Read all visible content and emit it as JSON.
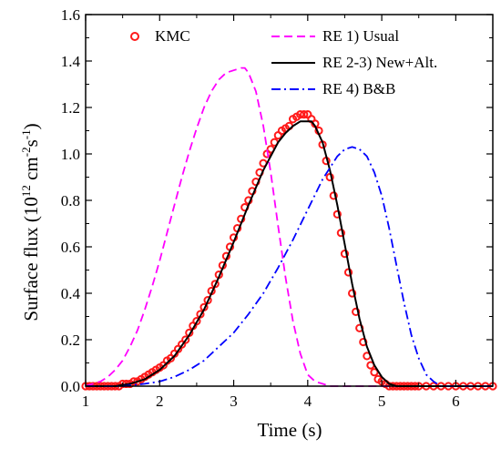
{
  "chart_data": {
    "type": "line",
    "xlabel": "Time (s)",
    "ylabel": {
      "base": "Surface flux (10",
      "sup1": "12",
      "mid1": " cm",
      "sup2": "-2",
      "mid2": "s",
      "sup3": "-1",
      "end": ")"
    },
    "xlim": [
      1,
      6.5
    ],
    "ylim": [
      0,
      1.6
    ],
    "xticks": [
      "1",
      "2",
      "3",
      "4",
      "5",
      "6"
    ],
    "yticks": [
      "0.0",
      "0.2",
      "0.4",
      "0.6",
      "0.8",
      "1.0",
      "1.2",
      "1.4",
      "1.6"
    ],
    "grid": false,
    "legend_position": "top",
    "series": [
      {
        "name": "KMC",
        "style": "markers",
        "marker": "open-circle",
        "color": "#ff1a1a",
        "x": [
          1.0,
          1.05,
          1.1,
          1.15,
          1.2,
          1.25,
          1.3,
          1.35,
          1.4,
          1.45,
          1.5,
          1.55,
          1.6,
          1.65,
          1.7,
          1.75,
          1.8,
          1.85,
          1.9,
          1.95,
          2.0,
          2.05,
          2.1,
          2.15,
          2.2,
          2.25,
          2.3,
          2.35,
          2.4,
          2.45,
          2.5,
          2.55,
          2.6,
          2.65,
          2.7,
          2.75,
          2.8,
          2.85,
          2.9,
          2.95,
          3.0,
          3.05,
          3.1,
          3.15,
          3.2,
          3.25,
          3.3,
          3.35,
          3.4,
          3.45,
          3.5,
          3.55,
          3.6,
          3.65,
          3.7,
          3.75,
          3.8,
          3.85,
          3.9,
          3.95,
          4.0,
          4.05,
          4.1,
          4.15,
          4.2,
          4.25,
          4.3,
          4.35,
          4.4,
          4.45,
          4.5,
          4.55,
          4.6,
          4.65,
          4.7,
          4.75,
          4.8,
          4.85,
          4.9,
          4.95,
          5.0,
          5.05,
          5.1,
          5.15,
          5.2,
          5.25,
          5.3,
          5.35,
          5.4,
          5.45,
          5.5,
          5.6,
          5.7,
          5.8,
          5.9,
          6.0,
          6.1,
          6.2,
          6.3,
          6.4,
          6.5
        ],
        "y": [
          0.0,
          0.0,
          0.0,
          0.0,
          0.0,
          0.0,
          0.0,
          0.0,
          0.0,
          0.0,
          0.01,
          0.01,
          0.01,
          0.02,
          0.02,
          0.03,
          0.04,
          0.05,
          0.06,
          0.07,
          0.08,
          0.09,
          0.11,
          0.12,
          0.14,
          0.16,
          0.18,
          0.2,
          0.23,
          0.26,
          0.28,
          0.31,
          0.34,
          0.37,
          0.41,
          0.44,
          0.48,
          0.52,
          0.56,
          0.6,
          0.64,
          0.68,
          0.72,
          0.77,
          0.8,
          0.84,
          0.88,
          0.92,
          0.96,
          1.0,
          1.02,
          1.05,
          1.08,
          1.1,
          1.11,
          1.12,
          1.15,
          1.16,
          1.17,
          1.17,
          1.17,
          1.15,
          1.13,
          1.1,
          1.04,
          0.97,
          0.9,
          0.82,
          0.74,
          0.66,
          0.57,
          0.49,
          0.4,
          0.32,
          0.25,
          0.19,
          0.13,
          0.09,
          0.06,
          0.03,
          0.02,
          0.01,
          0.0,
          0.0,
          0.0,
          0.0,
          0.0,
          0.0,
          0.0,
          0.0,
          0.0,
          0.0,
          0.0,
          0.0,
          0.0,
          0.0,
          0.0,
          0.0,
          0.0,
          0.0,
          0.0
        ]
      },
      {
        "name": "RE 1) Usual",
        "style": "dashed",
        "color": "#ff00ff",
        "x": [
          1.0,
          1.1,
          1.2,
          1.3,
          1.4,
          1.5,
          1.6,
          1.7,
          1.8,
          1.9,
          2.0,
          2.1,
          2.2,
          2.3,
          2.4,
          2.5,
          2.6,
          2.7,
          2.8,
          2.9,
          3.0,
          3.1,
          3.15,
          3.2,
          3.3,
          3.4,
          3.5,
          3.6,
          3.7,
          3.8,
          3.9,
          4.0,
          4.1,
          4.2,
          4.3,
          4.5,
          5.0,
          6.0,
          6.5
        ],
        "y": [
          0.0,
          0.01,
          0.02,
          0.04,
          0.07,
          0.11,
          0.17,
          0.24,
          0.33,
          0.43,
          0.54,
          0.66,
          0.78,
          0.9,
          1.01,
          1.11,
          1.2,
          1.27,
          1.32,
          1.35,
          1.36,
          1.37,
          1.37,
          1.35,
          1.27,
          1.12,
          0.92,
          0.69,
          0.47,
          0.28,
          0.14,
          0.05,
          0.02,
          0.01,
          0.0,
          0.0,
          0.0,
          0.0,
          0.0
        ]
      },
      {
        "name": "RE 2-3) New+Alt.",
        "style": "solid",
        "color": "#000000",
        "x": [
          1.0,
          1.2,
          1.4,
          1.6,
          1.8,
          2.0,
          2.2,
          2.4,
          2.6,
          2.8,
          3.0,
          3.2,
          3.4,
          3.6,
          3.7,
          3.8,
          3.9,
          4.0,
          4.05,
          4.1,
          4.2,
          4.3,
          4.4,
          4.5,
          4.6,
          4.7,
          4.8,
          4.9,
          5.0,
          5.1,
          5.2,
          5.3,
          5.5,
          6.0,
          6.5
        ],
        "y": [
          0.0,
          0.0,
          0.0,
          0.01,
          0.03,
          0.07,
          0.13,
          0.22,
          0.33,
          0.47,
          0.62,
          0.78,
          0.93,
          1.05,
          1.09,
          1.12,
          1.14,
          1.14,
          1.14,
          1.12,
          1.05,
          0.93,
          0.78,
          0.61,
          0.44,
          0.29,
          0.17,
          0.09,
          0.04,
          0.01,
          0.0,
          0.0,
          0.0,
          0.0,
          0.0
        ]
      },
      {
        "name": "RE 4) B&B",
        "style": "dashdot",
        "color": "#0000ff",
        "x": [
          1.0,
          1.5,
          1.8,
          2.0,
          2.2,
          2.4,
          2.6,
          2.8,
          3.0,
          3.2,
          3.4,
          3.6,
          3.8,
          4.0,
          4.2,
          4.4,
          4.5,
          4.6,
          4.7,
          4.8,
          4.9,
          5.0,
          5.1,
          5.2,
          5.3,
          5.4,
          5.5,
          5.6,
          5.7,
          5.8,
          5.9,
          6.0,
          6.5
        ],
        "y": [
          0.0,
          0.0,
          0.01,
          0.02,
          0.04,
          0.07,
          0.11,
          0.17,
          0.23,
          0.31,
          0.4,
          0.51,
          0.63,
          0.76,
          0.89,
          0.99,
          1.02,
          1.03,
          1.02,
          0.99,
          0.92,
          0.82,
          0.68,
          0.52,
          0.36,
          0.22,
          0.12,
          0.05,
          0.02,
          0.0,
          0.0,
          0.0,
          0.0
        ]
      }
    ]
  }
}
